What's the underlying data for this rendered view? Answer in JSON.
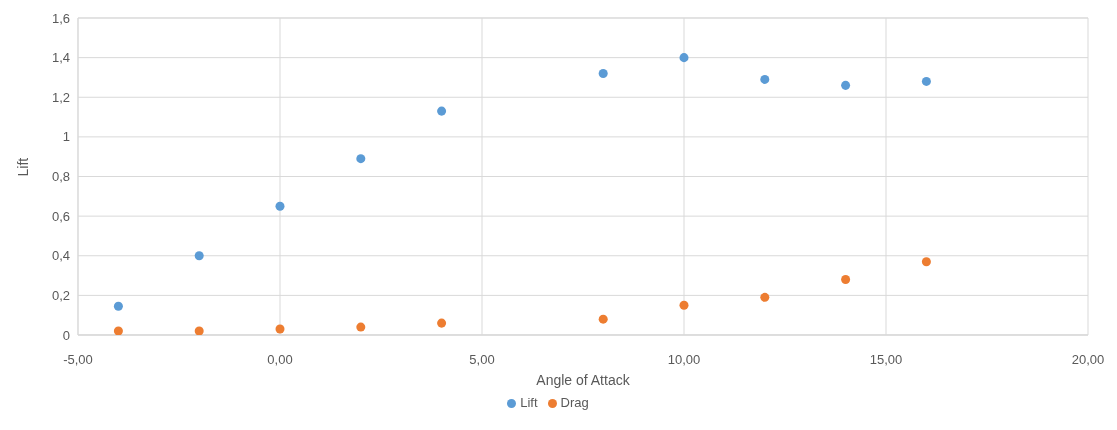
{
  "chart_data": {
    "type": "scatter",
    "xlabel": "Angle of Attack",
    "ylabel": "Lift",
    "x": [
      -4,
      -2,
      0,
      2,
      4,
      8,
      10,
      12,
      14,
      16
    ],
    "series": [
      {
        "name": "Lift",
        "color": "#5b9bd5",
        "values": [
          0.145,
          0.4,
          0.65,
          0.89,
          1.13,
          1.32,
          1.4,
          1.29,
          1.26,
          1.28
        ]
      },
      {
        "name": "Drag",
        "color": "#ed7d31",
        "values": [
          0.02,
          0.02,
          0.03,
          0.04,
          0.06,
          0.08,
          0.15,
          0.19,
          0.28,
          0.37
        ]
      }
    ],
    "xlim": [
      -5,
      20
    ],
    "xticks": [
      {
        "value": -5,
        "label": "-5,00"
      },
      {
        "value": 0,
        "label": "0,00"
      },
      {
        "value": 5,
        "label": "5,00"
      },
      {
        "value": 10,
        "label": "10,00"
      },
      {
        "value": 15,
        "label": "15,00"
      },
      {
        "value": 20,
        "label": "20,00"
      }
    ],
    "ylim": [
      0,
      1.6
    ],
    "yticks": [
      0,
      {
        "value": 0.2,
        "label": "0,2"
      },
      {
        "value": 0.4,
        "label": "0,4"
      },
      {
        "value": 0.6,
        "label": "0,6"
      },
      {
        "value": 0.8,
        "label": "0,8"
      },
      1,
      {
        "value": 1.2,
        "label": "1,2"
      },
      {
        "value": 1.4,
        "label": "1,4"
      },
      {
        "value": 1.6,
        "label": "1,6"
      }
    ],
    "grid": true,
    "legend": "bottom",
    "marker": "circle"
  }
}
